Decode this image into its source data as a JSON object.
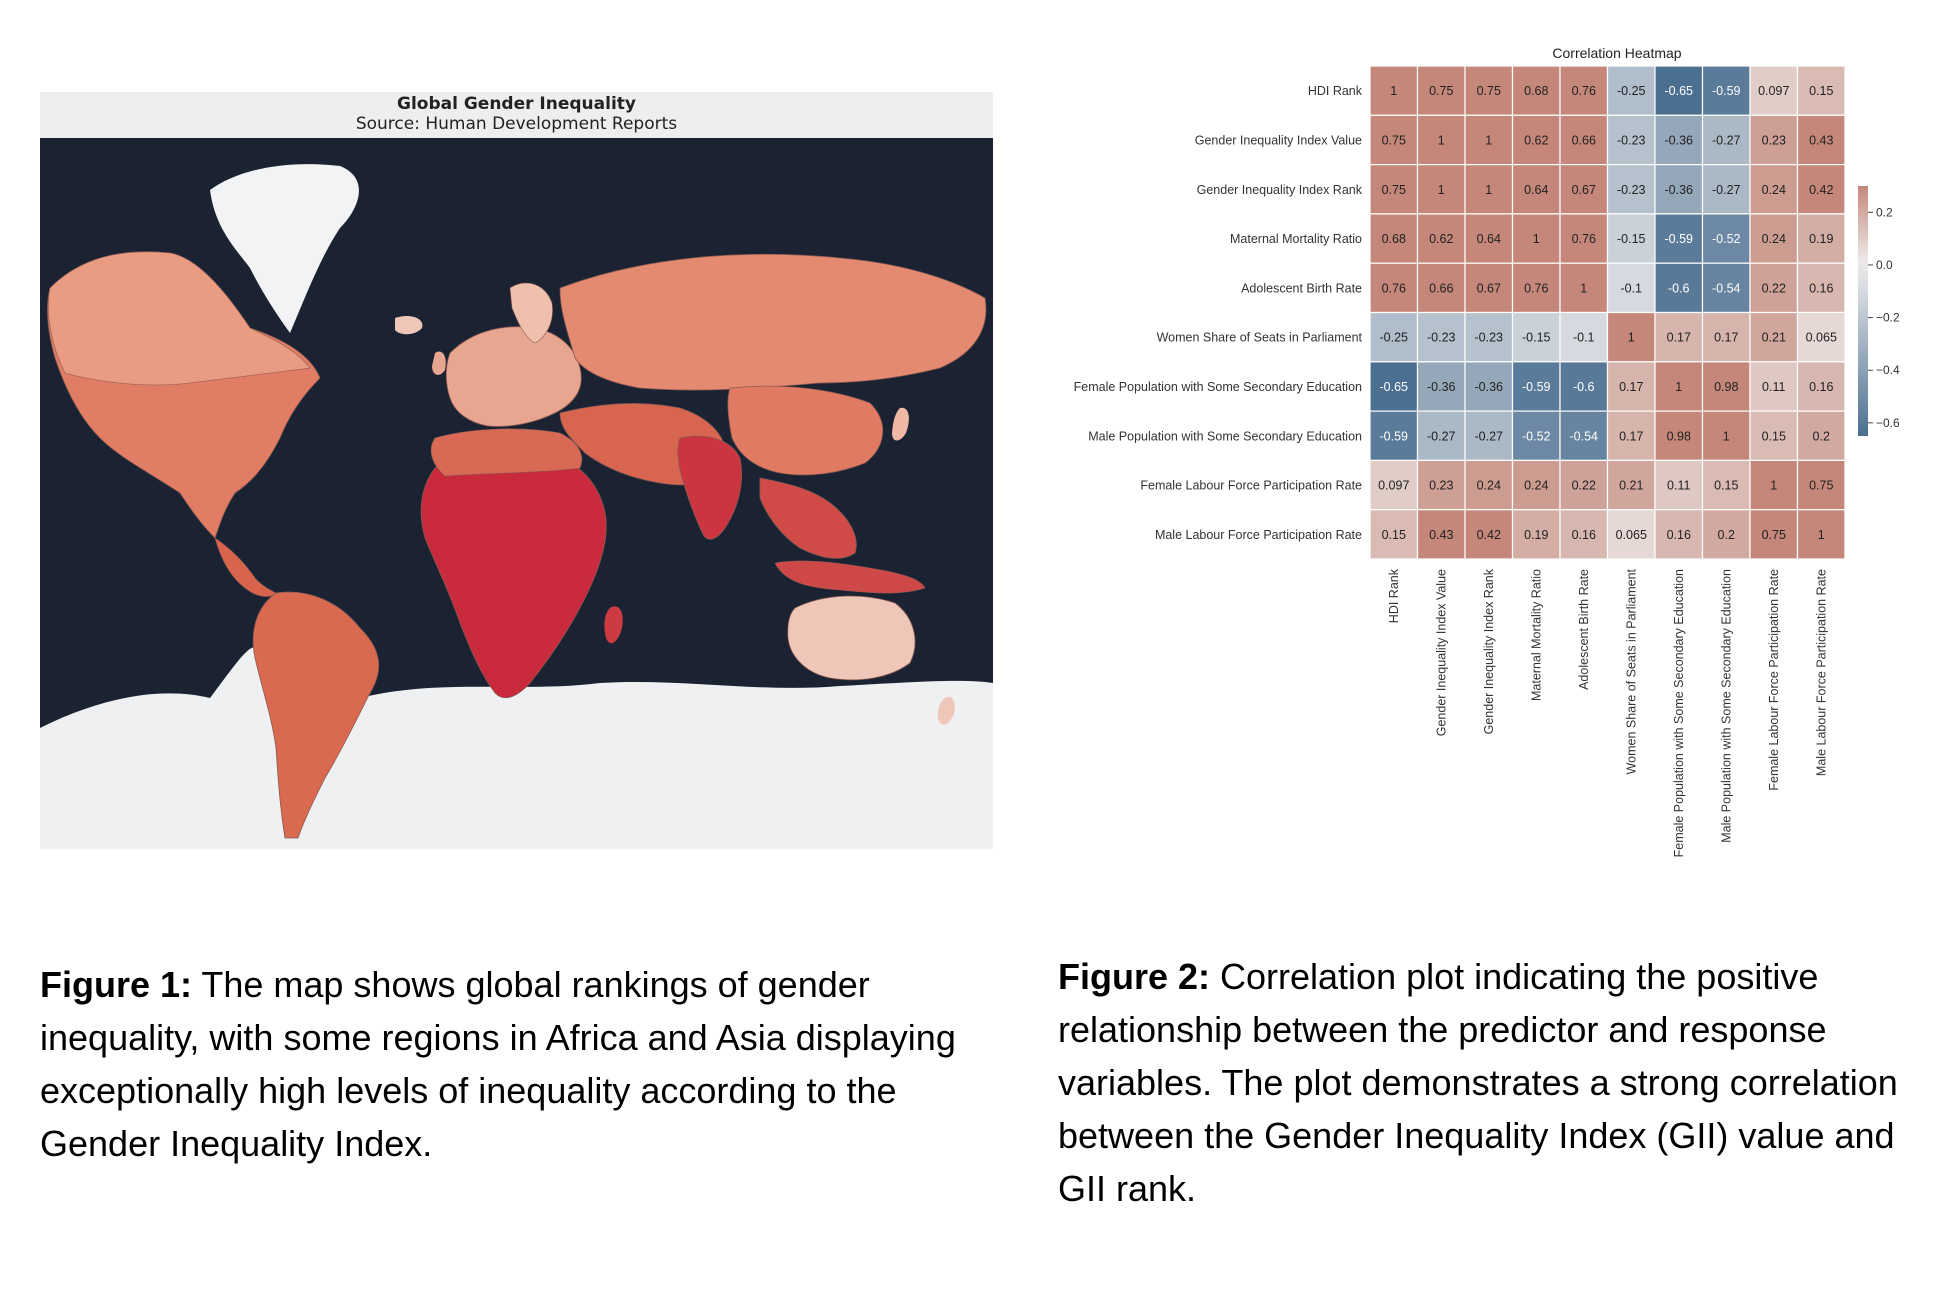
{
  "map": {
    "title": "Global Gender Inequality",
    "subtitle": "Source: Human Development Reports",
    "colors": {
      "ocean": "#1b2333",
      "ice": "#eef0f2",
      "low": "#e8b8a4",
      "mid": "#d9735a",
      "high": "#c8283a",
      "border": "#8a5a52"
    }
  },
  "chart_data": [
    {
      "type": "heatmap",
      "title": "Correlation Heatmap",
      "rows": [
        "HDI Rank",
        "Gender Inequality Index Value",
        "Gender Inequality Index Rank",
        "Maternal Mortality Ratio",
        "Adolescent Birth Rate",
        "Women Share of Seats in Parliament",
        "Female Population with Some Secondary Education",
        "Male Population with Some Secondary Education",
        "Female Labour Force Participation Rate",
        "Male Labour Force Participation Rate"
      ],
      "columns": [
        "HDI Rank",
        "Gender Inequality Index Value",
        "Gender Inequality Index Rank",
        "Maternal Mortality Ratio",
        "Adolescent Birth Rate",
        "Women Share of Seats in Parliament",
        "Female Population with Some Secondary Education",
        "Male Population with Some Secondary Education",
        "Female Labour Force Participation Rate",
        "Male Labour Force Participation Rate"
      ],
      "values": [
        [
          "1",
          "0.75",
          "0.75",
          "0.68",
          "0.76",
          "-0.25",
          "-0.65",
          "-0.59",
          "0.097",
          "0.15"
        ],
        [
          "0.75",
          "1",
          "1",
          "0.62",
          "0.66",
          "-0.23",
          "-0.36",
          "-0.27",
          "0.23",
          "0.43"
        ],
        [
          "0.75",
          "1",
          "1",
          "0.64",
          "0.67",
          "-0.23",
          "-0.36",
          "-0.27",
          "0.24",
          "0.42"
        ],
        [
          "0.68",
          "0.62",
          "0.64",
          "1",
          "0.76",
          "-0.15",
          "-0.59",
          "-0.52",
          "0.24",
          "0.19"
        ],
        [
          "0.76",
          "0.66",
          "0.67",
          "0.76",
          "1",
          "-0.1",
          "-0.6",
          "-0.54",
          "0.22",
          "0.16"
        ],
        [
          "-0.25",
          "-0.23",
          "-0.23",
          "-0.15",
          "-0.1",
          "1",
          "0.17",
          "0.17",
          "0.21",
          "0.065"
        ],
        [
          "-0.65",
          "-0.36",
          "-0.36",
          "-0.59",
          "-0.6",
          "0.17",
          "1",
          "0.98",
          "0.11",
          "0.16"
        ],
        [
          "-0.59",
          "-0.27",
          "-0.27",
          "-0.52",
          "-0.54",
          "0.17",
          "0.98",
          "1",
          "0.15",
          "0.2"
        ],
        [
          "0.097",
          "0.23",
          "0.24",
          "0.24",
          "0.22",
          "0.21",
          "0.11",
          "0.15",
          "1",
          "0.75"
        ],
        [
          "0.15",
          "0.43",
          "0.42",
          "0.19",
          "0.16",
          "0.065",
          "0.16",
          "0.2",
          "0.75",
          "1"
        ]
      ],
      "colorbar": {
        "ticks": [
          "0.2",
          "0.0",
          "−0.2",
          "−0.4",
          "−0.6"
        ],
        "tick_values": [
          0.2,
          0.0,
          -0.2,
          -0.4,
          -0.6
        ],
        "range": [
          -0.65,
          0.3
        ]
      },
      "colors": {
        "positive": "#c4877a",
        "neutral": "#efeeee",
        "negative": "#4b6f91"
      }
    }
  ],
  "captions": {
    "figure1": {
      "label": "Figure 1:",
      "text": " The map shows global rankings of gender inequality, with some regions in Africa and Asia displaying exceptionally high levels of inequality according to the Gender Inequality Index."
    },
    "figure2": {
      "label": "Figure 2:",
      "text": " Correlation plot indicating the positive relationship between the predictor and response variables. The plot demonstrates a strong correlation between the Gender Inequality Index (GII) value and GII rank."
    }
  }
}
